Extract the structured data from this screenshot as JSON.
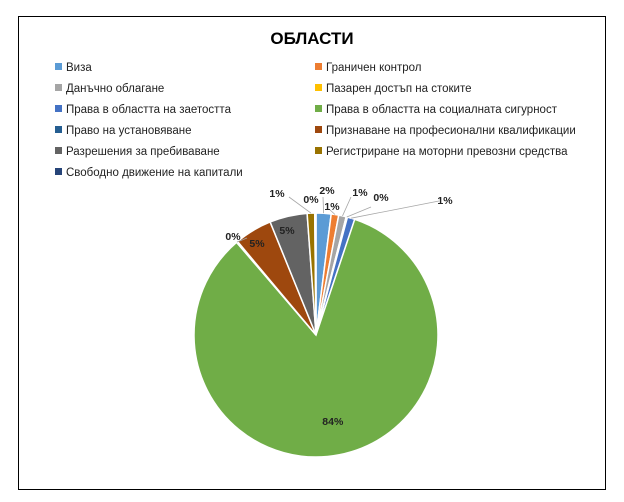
{
  "chart_data": {
    "type": "pie",
    "title": "ОБЛАСТИ",
    "slices": [
      {
        "name": "Виза",
        "value": 2,
        "label": "2%",
        "color": "#5b9bd5"
      },
      {
        "name": "Граничен контрол",
        "value": 1,
        "label": "1%",
        "color": "#ed7d31"
      },
      {
        "name": "Данъчно облагане",
        "value": 1,
        "label": "1%",
        "color": "#a5a5a5"
      },
      {
        "name": "Пазарен достъп на стоките",
        "value": 0,
        "label": "0%",
        "color": "#ffc000"
      },
      {
        "name": "Права в областта на заетостта",
        "value": 1,
        "label": "1%",
        "color": "#4472c4"
      },
      {
        "name": "Права в областта на социалната сигурност",
        "value": 84,
        "label": "84%",
        "color": "#70ad47"
      },
      {
        "name": "Право на установяване",
        "value": 0,
        "label": "0%",
        "color": "#255e91"
      },
      {
        "name": "Признаване на професионални квалификации",
        "value": 5,
        "label": "5%",
        "color": "#9e480e"
      },
      {
        "name": "Разрешения за пребиваване",
        "value": 5,
        "label": "5%",
        "color": "#636363"
      },
      {
        "name": "Регистриране на моторни превозни средства",
        "value": 1,
        "label": "1%",
        "color": "#997300"
      },
      {
        "name": "Свободно движение на капитали",
        "value": 0,
        "label": "0%",
        "color": "#264478"
      }
    ],
    "legend_position": "top"
  }
}
